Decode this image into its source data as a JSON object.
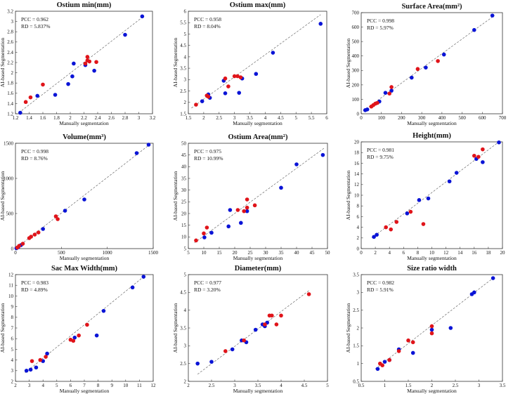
{
  "colors": {
    "blue": "#0a14d6",
    "red": "#e0141a"
  },
  "chart_data": [
    {
      "type": "scatter",
      "title": "Ostium min(mm)",
      "xlabel": "Manually segmentation",
      "ylabel": "AI-based Segmentation",
      "pcc": "PCC = 0.962",
      "rd": "RD = 5.837%",
      "xlim": [
        1.2,
        3.2
      ],
      "ylim": [
        1.2,
        3.2
      ],
      "xticks": [
        "1.2",
        "1.4",
        "1.6",
        "1.8",
        "2",
        "2.2",
        "2.4",
        "2.6",
        "2.8",
        "3",
        "3.2"
      ],
      "yticks": [
        "1.2",
        "1.4",
        "1.6",
        "1.8",
        "2",
        "2.2",
        "2.4",
        "2.6",
        "2.8",
        "3",
        "3.2"
      ],
      "line": [
        [
          1.25,
          1.22
        ],
        [
          3.05,
          3.08
        ]
      ],
      "blue": [
        [
          1.27,
          1.22
        ],
        [
          1.52,
          1.55
        ],
        [
          1.78,
          1.57
        ],
        [
          1.97,
          1.78
        ],
        [
          2.03,
          1.93
        ],
        [
          2.05,
          2.18
        ],
        [
          2.22,
          2.15
        ],
        [
          2.35,
          2.04
        ],
        [
          2.8,
          2.74
        ],
        [
          3.05,
          3.1
        ]
      ],
      "red": [
        [
          1.35,
          1.43
        ],
        [
          1.42,
          1.52
        ],
        [
          1.6,
          1.77
        ],
        [
          2.22,
          2.18
        ],
        [
          2.25,
          2.24
        ],
        [
          2.25,
          2.31
        ],
        [
          2.28,
          2.22
        ],
        [
          2.38,
          2.21
        ]
      ]
    },
    {
      "type": "scatter",
      "title": "Ostium max(mm)",
      "xlabel": "Manually segmentation",
      "ylabel": "AI-based Segmentation",
      "pcc": "PCC = 0.958",
      "rd": "RD = 8.04%",
      "xlim": [
        1.5,
        6
      ],
      "ylim": [
        1.5,
        6
      ],
      "xticks": [
        "1.5",
        "2",
        "2.5",
        "3",
        "3.5",
        "4",
        "4.5",
        "5",
        "5.5",
        "6"
      ],
      "yticks": [
        "1.5",
        "2",
        "2.5",
        "3",
        "3.5",
        "4",
        "4.5",
        "5",
        "5.5",
        "6"
      ],
      "line": [
        [
          1.6,
          1.75
        ],
        [
          5.8,
          5.85
        ]
      ],
      "blue": [
        [
          1.95,
          2.05
        ],
        [
          2.15,
          2.35
        ],
        [
          2.2,
          2.2
        ],
        [
          2.65,
          2.95
        ],
        [
          2.7,
          2.4
        ],
        [
          3.15,
          2.42
        ],
        [
          3.25,
          3.05
        ],
        [
          3.7,
          3.25
        ],
        [
          4.25,
          4.18
        ],
        [
          5.8,
          5.45
        ]
      ],
      "red": [
        [
          1.75,
          1.9
        ],
        [
          2.1,
          2.3
        ],
        [
          2.15,
          2.25
        ],
        [
          2.7,
          3.05
        ],
        [
          2.8,
          2.7
        ],
        [
          3.0,
          3.15
        ],
        [
          3.1,
          3.15
        ],
        [
          3.2,
          3.1
        ]
      ]
    },
    {
      "type": "scatter",
      "title": "Surface Area(mm²)",
      "xlabel": "Manually segmentation",
      "ylabel": "AI-based Segmentation",
      "pcc": "PCC = 0.998",
      "rd": "RD = 5.97%",
      "xlim": [
        0,
        700
      ],
      "ylim": [
        0,
        700
      ],
      "xticks": [
        "0",
        "100",
        "200",
        "300",
        "400",
        "500",
        "600",
        "700"
      ],
      "yticks": [
        "0",
        "100",
        "200",
        "300",
        "400",
        "500",
        "600",
        "700"
      ],
      "line": [
        [
          10,
          20
        ],
        [
          660,
          680
        ]
      ],
      "blue": [
        [
          20,
          25
        ],
        [
          30,
          30
        ],
        [
          90,
          85
        ],
        [
          120,
          145
        ],
        [
          150,
          160
        ],
        [
          250,
          250
        ],
        [
          320,
          320
        ],
        [
          410,
          410
        ],
        [
          560,
          580
        ],
        [
          650,
          680
        ]
      ],
      "red": [
        [
          50,
          50
        ],
        [
          60,
          60
        ],
        [
          70,
          70
        ],
        [
          80,
          75
        ],
        [
          140,
          140
        ],
        [
          150,
          185
        ],
        [
          280,
          310
        ],
        [
          380,
          365
        ]
      ]
    },
    {
      "type": "scatter",
      "title": "Volume(mm³)",
      "xlabel": "Manually segmentation",
      "ylabel": "AI-based Segmentation",
      "pcc": "PCC = 0.998",
      "rd": "RD = 8.76%",
      "xlim": [
        0,
        1500
      ],
      "ylim": [
        0,
        1500
      ],
      "xticks": [
        "0",
        "500",
        "1000",
        "1500"
      ],
      "yticks": [
        "0",
        "500",
        "1000",
        "1500"
      ],
      "line": [
        [
          0,
          0
        ],
        [
          1450,
          1470
        ]
      ],
      "blue": [
        [
          10,
          5
        ],
        [
          30,
          20
        ],
        [
          60,
          50
        ],
        [
          300,
          280
        ],
        [
          540,
          540
        ],
        [
          750,
          700
        ],
        [
          1320,
          1360
        ],
        [
          1450,
          1480
        ]
      ],
      "red": [
        [
          20,
          15
        ],
        [
          40,
          40
        ],
        [
          80,
          70
        ],
        [
          150,
          150
        ],
        [
          170,
          170
        ],
        [
          210,
          200
        ],
        [
          250,
          230
        ],
        [
          440,
          460
        ],
        [
          460,
          420
        ]
      ]
    },
    {
      "type": "scatter",
      "title": "Ostium Area(mm²)",
      "xlabel": "Manually segmentation",
      "ylabel": "AI-based Segmentation",
      "pcc": "PCC = 0.975",
      "rd": "RD = 10.99%",
      "xlim": [
        5,
        50
      ],
      "ylim": [
        5,
        50
      ],
      "xticks": [
        "5",
        "10",
        "15",
        "20",
        "25",
        "30",
        "35",
        "40",
        "45",
        "50"
      ],
      "yticks": [
        "5",
        "10",
        "15",
        "20",
        "25",
        "30",
        "35",
        "40",
        "45",
        "50"
      ],
      "line": [
        [
          7,
          7.5
        ],
        [
          49,
          48
        ]
      ],
      "blue": [
        [
          10.2,
          9.8
        ],
        [
          12.5,
          11.8
        ],
        [
          18,
          14.5
        ],
        [
          18.5,
          21.5
        ],
        [
          22,
          16
        ],
        [
          24,
          21
        ],
        [
          35,
          31
        ],
        [
          40,
          41
        ],
        [
          48.5,
          45
        ]
      ],
      "red": [
        [
          7.5,
          8.5
        ],
        [
          10,
          11.5
        ],
        [
          11,
          14
        ],
        [
          21,
          21.5
        ],
        [
          23,
          21
        ],
        [
          24,
          22.5
        ],
        [
          24,
          26
        ],
        [
          26.5,
          23.5
        ]
      ]
    },
    {
      "type": "scatter",
      "title": "Height(mm)",
      "xlabel": "Manually segmentation",
      "ylabel": "AI-based Segmentation",
      "pcc": "PCC = 0.981",
      "rd": "RD = 9.75%",
      "xlim": [
        0,
        20
      ],
      "ylim": [
        0,
        20
      ],
      "xticks": [
        "0",
        "2",
        "4",
        "6",
        "8",
        "10",
        "12",
        "14",
        "16",
        "18",
        "20"
      ],
      "yticks": [
        "0",
        "2",
        "4",
        "6",
        "8",
        "10",
        "12",
        "14",
        "16",
        "18",
        "20"
      ],
      "line": [
        [
          1.5,
          2
        ],
        [
          19.5,
          20
        ]
      ],
      "blue": [
        [
          1.8,
          2.2
        ],
        [
          2.2,
          2.6
        ],
        [
          6.5,
          6.6
        ],
        [
          8.2,
          9.1
        ],
        [
          9.5,
          9.4
        ],
        [
          12.5,
          12.6
        ],
        [
          13.5,
          14.2
        ],
        [
          16.3,
          16.8
        ],
        [
          17.2,
          16.2
        ],
        [
          19.5,
          19.9
        ]
      ],
      "red": [
        [
          3.5,
          4
        ],
        [
          4.2,
          3.6
        ],
        [
          5,
          5
        ],
        [
          7,
          6.9
        ],
        [
          8.8,
          4.6
        ],
        [
          16,
          17.4
        ],
        [
          16.6,
          17.2
        ],
        [
          17.2,
          18.6
        ]
      ]
    },
    {
      "type": "scatter",
      "title": "Sac Max Width(mm)",
      "xlabel": "Manually segmentation",
      "ylabel": "AI-based Segmentation",
      "pcc": "PCC = 0.983",
      "rd": "RD = 4.89%",
      "xlim": [
        2,
        12
      ],
      "ylim": [
        2,
        12
      ],
      "xticks": [
        "2",
        "3",
        "4",
        "5",
        "6",
        "7",
        "8",
        "9",
        "10",
        "11",
        "12"
      ],
      "yticks": [
        "2",
        "3",
        "4",
        "5",
        "6",
        "7",
        "8",
        "9",
        "10",
        "11",
        "12"
      ],
      "line": [
        [
          2.7,
          2.8
        ],
        [
          11.3,
          11.8
        ]
      ],
      "blue": [
        [
          2.8,
          3
        ],
        [
          3.1,
          3.1
        ],
        [
          3.5,
          3.3
        ],
        [
          4,
          3.9
        ],
        [
          4.3,
          4.6
        ],
        [
          6.3,
          6.1
        ],
        [
          7.9,
          6.3
        ],
        [
          8.4,
          8.6
        ],
        [
          10.5,
          10.8
        ],
        [
          11.3,
          11.8
        ]
      ],
      "red": [
        [
          3.2,
          3.9
        ],
        [
          3.8,
          4.0
        ],
        [
          4.2,
          4.3
        ],
        [
          6.0,
          5.9
        ],
        [
          6.2,
          5.8
        ],
        [
          6.6,
          6.3
        ],
        [
          7.2,
          7.3
        ]
      ]
    },
    {
      "type": "scatter",
      "title": "Diameter(mm)",
      "xlabel": "Manually segmentation",
      "ylabel": "AI-based Segmentation",
      "pcc": "PCC = 0.977",
      "rd": "RD = 3.20%",
      "xlim": [
        2,
        5
      ],
      "ylim": [
        2,
        5
      ],
      "xticks": [
        "2",
        "2.5",
        "3",
        "3.5",
        "4",
        "4.5",
        "5"
      ],
      "yticks": [
        "2",
        "2.5",
        "3",
        "3.5",
        "4",
        "4.5",
        "5"
      ],
      "line": [
        [
          2.2,
          2.2
        ],
        [
          4.6,
          4.55
        ]
      ],
      "blue": [
        [
          2.2,
          2.5
        ],
        [
          2.5,
          2.55
        ],
        [
          2.95,
          2.9
        ],
        [
          3.15,
          3.15
        ],
        [
          3.25,
          3.1
        ],
        [
          3.45,
          3.45
        ],
        [
          3.6,
          3.6
        ],
        [
          3.65,
          3.55
        ],
        [
          3.7,
          3.65
        ]
      ],
      "red": [
        [
          2.8,
          2.85
        ],
        [
          3.2,
          3.15
        ],
        [
          3.65,
          3.6
        ],
        [
          3.75,
          3.85
        ],
        [
          3.8,
          3.85
        ],
        [
          3.9,
          3.6
        ],
        [
          4.0,
          3.85
        ],
        [
          4.6,
          4.45
        ]
      ]
    },
    {
      "type": "scatter",
      "title": "Size ratio width",
      "xlabel": "Manually segmentation",
      "ylabel": "AI-based Segmentation",
      "pcc": "PCC = 0.982",
      "rd": "RD = 5.91%",
      "xlim": [
        0.5,
        3.5
      ],
      "ylim": [
        0.5,
        3.5
      ],
      "xticks": [
        "0.5",
        "1",
        "1.5",
        "2",
        "2.5",
        "3",
        "3.5"
      ],
      "yticks": [
        "0.5",
        "1",
        "1.5",
        "2",
        "2.5",
        "3",
        "3.5"
      ],
      "line": [
        [
          0.8,
          0.85
        ],
        [
          3.3,
          3.4
        ]
      ],
      "blue": [
        [
          0.85,
          0.85
        ],
        [
          1.0,
          1.05
        ],
        [
          1.1,
          1.1
        ],
        [
          1.3,
          1.4
        ],
        [
          1.6,
          1.3
        ],
        [
          2.0,
          1.95
        ],
        [
          2.4,
          2.0
        ],
        [
          2.85,
          2.95
        ],
        [
          2.9,
          3.0
        ],
        [
          3.3,
          3.4
        ]
      ],
      "red": [
        [
          0.9,
          1.0
        ],
        [
          0.95,
          0.95
        ],
        [
          1.1,
          1.1
        ],
        [
          1.3,
          1.35
        ],
        [
          1.5,
          1.65
        ],
        [
          1.6,
          1.6
        ],
        [
          2.0,
          1.85
        ],
        [
          2.0,
          2.05
        ]
      ]
    }
  ]
}
